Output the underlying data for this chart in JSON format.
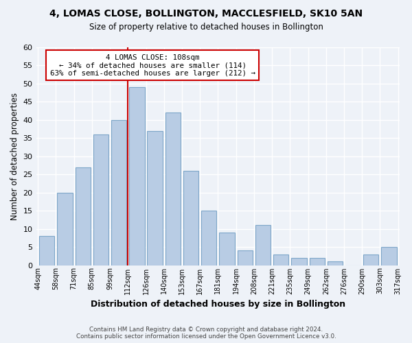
{
  "title": "4, LOMAS CLOSE, BOLLINGTON, MACCLESFIELD, SK10 5AN",
  "subtitle": "Size of property relative to detached houses in Bollington",
  "xlabel": "Distribution of detached houses by size in Bollington",
  "ylabel": "Number of detached properties",
  "bin_labels": [
    "44sqm",
    "58sqm",
    "71sqm",
    "85sqm",
    "99sqm",
    "112sqm",
    "126sqm",
    "140sqm",
    "153sqm",
    "167sqm",
    "181sqm",
    "194sqm",
    "208sqm",
    "221sqm",
    "235sqm",
    "249sqm",
    "262sqm",
    "276sqm",
    "290sqm",
    "303sqm",
    "317sqm"
  ],
  "bar_heights": [
    8,
    20,
    27,
    36,
    40,
    49,
    37,
    42,
    26,
    15,
    9,
    4,
    11,
    3,
    2,
    2,
    1,
    0,
    3,
    5
  ],
  "bar_color": "#b8cce4",
  "bar_edge_color": "#7da6c8",
  "vline_x_index": 5,
  "vline_color": "#cc0000",
  "ylim": [
    0,
    60
  ],
  "yticks": [
    0,
    5,
    10,
    15,
    20,
    25,
    30,
    35,
    40,
    45,
    50,
    55,
    60
  ],
  "annotation_title": "4 LOMAS CLOSE: 108sqm",
  "annotation_line1": "← 34% of detached houses are smaller (114)",
  "annotation_line2": "63% of semi-detached houses are larger (212) →",
  "annotation_box_color": "#ffffff",
  "annotation_box_edge": "#cc0000",
  "footer1": "Contains HM Land Registry data © Crown copyright and database right 2024.",
  "footer2": "Contains public sector information licensed under the Open Government Licence v3.0.",
  "background_color": "#eef2f8",
  "grid_color": "#ffffff"
}
